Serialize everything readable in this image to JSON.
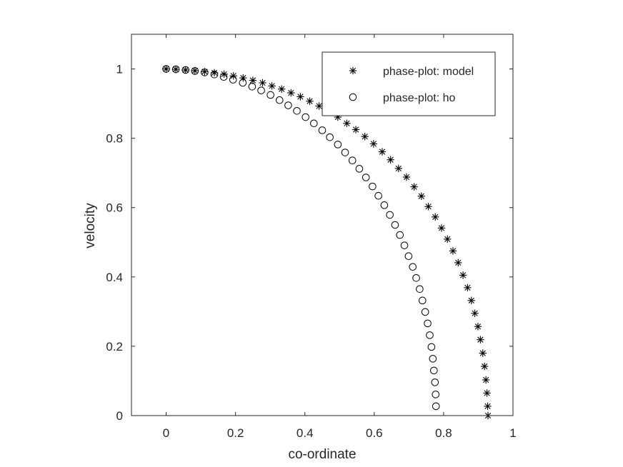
{
  "chart_data": {
    "type": "scatter",
    "title": "",
    "xlabel": "co-ordinate",
    "ylabel": "velocity",
    "xlim": [
      -0.1,
      1
    ],
    "ylim": [
      0,
      1.1
    ],
    "xticks": [
      "0",
      "0.2",
      "0.4",
      "0.6",
      "0.8",
      "1"
    ],
    "yticks": [
      "0",
      "0.2",
      "0.4",
      "0.6",
      "0.8",
      "1"
    ],
    "grid": false,
    "legend_position": "top-right",
    "series": [
      {
        "name": "phase-plot: model",
        "marker": "asterisk",
        "color": "#000000",
        "x": [
          0.0,
          0.028,
          0.056,
          0.083,
          0.111,
          0.139,
          0.167,
          0.194,
          0.222,
          0.25,
          0.278,
          0.305,
          0.333,
          0.36,
          0.387,
          0.414,
          0.441,
          0.468,
          0.495,
          0.521,
          0.547,
          0.573,
          0.598,
          0.623,
          0.647,
          0.67,
          0.693,
          0.715,
          0.736,
          0.756,
          0.776,
          0.794,
          0.811,
          0.827,
          0.842,
          0.856,
          0.869,
          0.88,
          0.89,
          0.899,
          0.906,
          0.913,
          0.918,
          0.922,
          0.925,
          0.927,
          0.928
        ],
        "y": [
          1.0,
          0.999,
          0.997,
          0.995,
          0.992,
          0.989,
          0.985,
          0.98,
          0.974,
          0.967,
          0.96,
          0.951,
          0.942,
          0.931,
          0.92,
          0.907,
          0.893,
          0.878,
          0.861,
          0.843,
          0.825,
          0.805,
          0.784,
          0.761,
          0.738,
          0.713,
          0.688,
          0.66,
          0.633,
          0.603,
          0.573,
          0.541,
          0.509,
          0.475,
          0.441,
          0.405,
          0.369,
          0.332,
          0.295,
          0.257,
          0.219,
          0.18,
          0.142,
          0.103,
          0.065,
          0.027,
          0.0
        ]
      },
      {
        "name": "phase-plot: ho",
        "marker": "circle",
        "color": "#000000",
        "x": [
          0.0,
          0.028,
          0.056,
          0.083,
          0.111,
          0.139,
          0.166,
          0.193,
          0.221,
          0.248,
          0.274,
          0.301,
          0.327,
          0.352,
          0.377,
          0.402,
          0.426,
          0.45,
          0.472,
          0.495,
          0.516,
          0.537,
          0.557,
          0.576,
          0.595,
          0.612,
          0.629,
          0.645,
          0.66,
          0.674,
          0.687,
          0.699,
          0.711,
          0.721,
          0.731,
          0.739,
          0.747,
          0.754,
          0.76,
          0.765,
          0.769,
          0.772,
          0.775,
          0.777,
          0.778
        ],
        "y": [
          1.0,
          0.999,
          0.997,
          0.994,
          0.99,
          0.984,
          0.977,
          0.969,
          0.96,
          0.949,
          0.938,
          0.925,
          0.91,
          0.895,
          0.879,
          0.861,
          0.843,
          0.823,
          0.803,
          0.782,
          0.759,
          0.736,
          0.712,
          0.687,
          0.661,
          0.634,
          0.607,
          0.579,
          0.55,
          0.521,
          0.491,
          0.46,
          0.429,
          0.397,
          0.365,
          0.332,
          0.299,
          0.266,
          0.232,
          0.198,
          0.164,
          0.13,
          0.096,
          0.061,
          0.027
        ]
      }
    ]
  }
}
